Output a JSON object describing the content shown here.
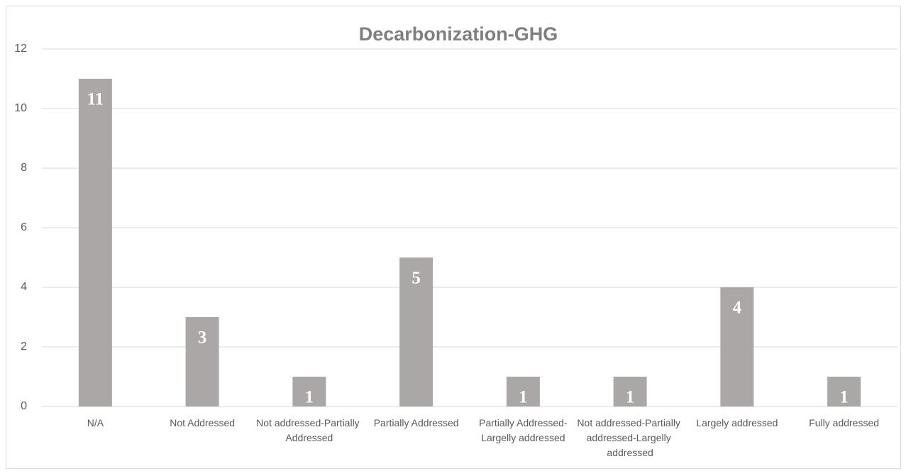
{
  "chart_data": {
    "type": "bar",
    "title": "Decarbonization-GHG",
    "categories": [
      "N/A",
      "Not Addressed",
      "Not addressed-Partially Addressed",
      "Partially Addressed",
      "Partially Addressed-Largelly addressed",
      "Not addressed-Partially addressed-Largelly addressed",
      "Largely addressed",
      "Fully addressed"
    ],
    "values": [
      11,
      3,
      1,
      5,
      1,
      1,
      4,
      1
    ],
    "color": "#aba7a6",
    "ylim": [
      0,
      12
    ],
    "yticks": [
      0,
      2,
      4,
      6,
      8,
      10,
      12
    ],
    "grid": true
  }
}
